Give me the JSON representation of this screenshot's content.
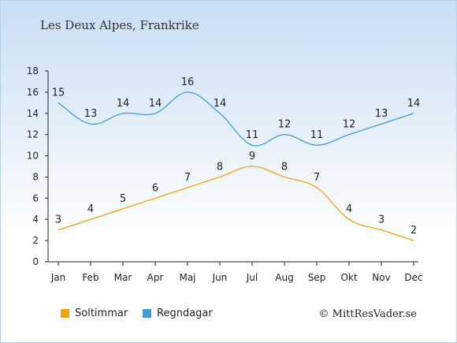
{
  "chart_data": {
    "type": "line",
    "title": "Les Deux Alpes, Frankrike",
    "categories": [
      "Jan",
      "Feb",
      "Mar",
      "Apr",
      "Maj",
      "Jun",
      "Jul",
      "Aug",
      "Sep",
      "Okt",
      "Nov",
      "Dec"
    ],
    "ylim": [
      0,
      18
    ],
    "yticks": [
      0,
      2,
      4,
      6,
      8,
      10,
      12,
      14,
      16,
      18
    ],
    "series": [
      {
        "name": "Soltimmar",
        "color": "#f5a20a",
        "values": [
          3,
          4,
          5,
          6,
          7,
          8,
          9,
          8,
          7,
          4,
          3,
          2
        ]
      },
      {
        "name": "Regndagar",
        "color": "#3d9be0",
        "values": [
          15,
          13,
          14,
          14,
          16,
          14,
          11,
          12,
          11,
          12,
          13,
          14
        ]
      }
    ],
    "legend_position": "bottom-left",
    "credit": "© MittResVader.se"
  }
}
